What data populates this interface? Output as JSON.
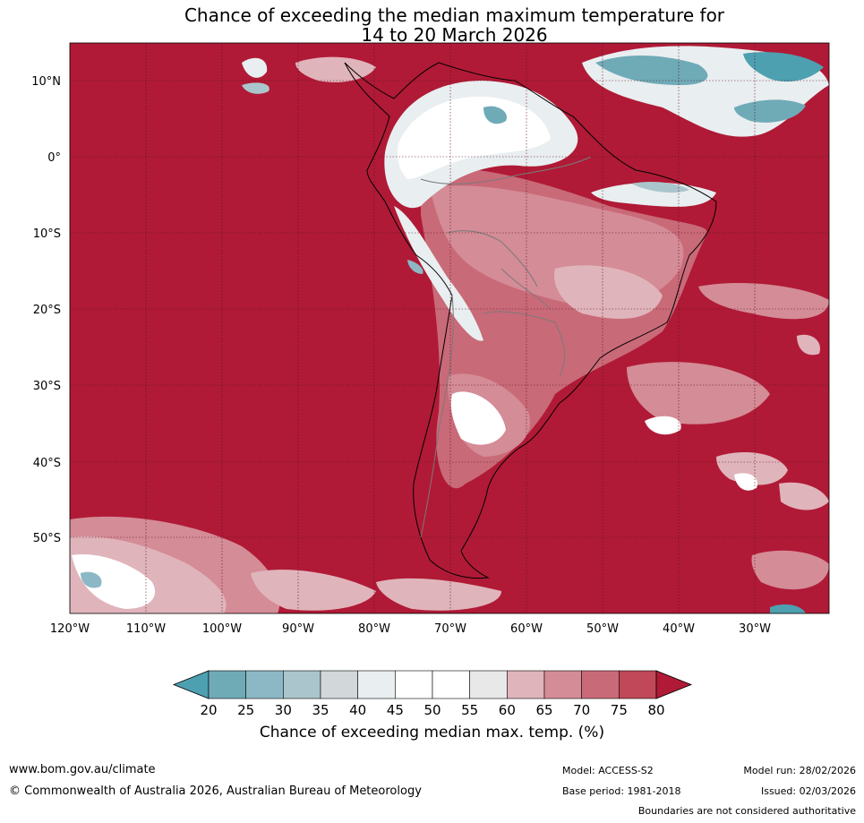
{
  "title": {
    "line1": "Chance of exceeding the median maximum temperature for",
    "line2": "14 to 20 March 2026"
  },
  "map": {
    "lat_labels": [
      "10°N",
      "0°",
      "10°S",
      "20°S",
      "30°S",
      "40°S",
      "50°S"
    ],
    "lon_labels": [
      "120°W",
      "110°W",
      "100°W",
      "90°W",
      "80°W",
      "70°W",
      "60°W",
      "50°W",
      "40°W",
      "30°W"
    ],
    "colors": {
      "ocean_dominant": "#b01a36",
      "grid": "#5a1020",
      "coast": "#000000",
      "border": "#7a7a7a"
    }
  },
  "colorbar": {
    "ticks": [
      "20",
      "25",
      "30",
      "35",
      "40",
      "45",
      "50",
      "55",
      "60",
      "65",
      "70",
      "75",
      "80"
    ],
    "colors": [
      "#4da0b0",
      "#6faab7",
      "#8cb8c5",
      "#aac6cc",
      "#d2d8da",
      "#e9eef0",
      "#ffffff",
      "#ffffff",
      "#e8e8e8",
      "#e0b4bb",
      "#d48c97",
      "#c96a78",
      "#c04858",
      "#b01a36"
    ],
    "label": "Chance of exceeding median max. temp. (%)"
  },
  "footer": {
    "website": "www.bom.gov.au/climate",
    "copyright": "© Commonwealth of Australia 2026, Australian Bureau of Meteorology",
    "model": "Model: ACCESS-S2",
    "base_period": "Base period: 1981-2018",
    "model_run": "Model run: 28/02/2026",
    "issued": "Issued: 02/03/2026",
    "disclaimer": "Boundaries are not considered authoritative"
  }
}
